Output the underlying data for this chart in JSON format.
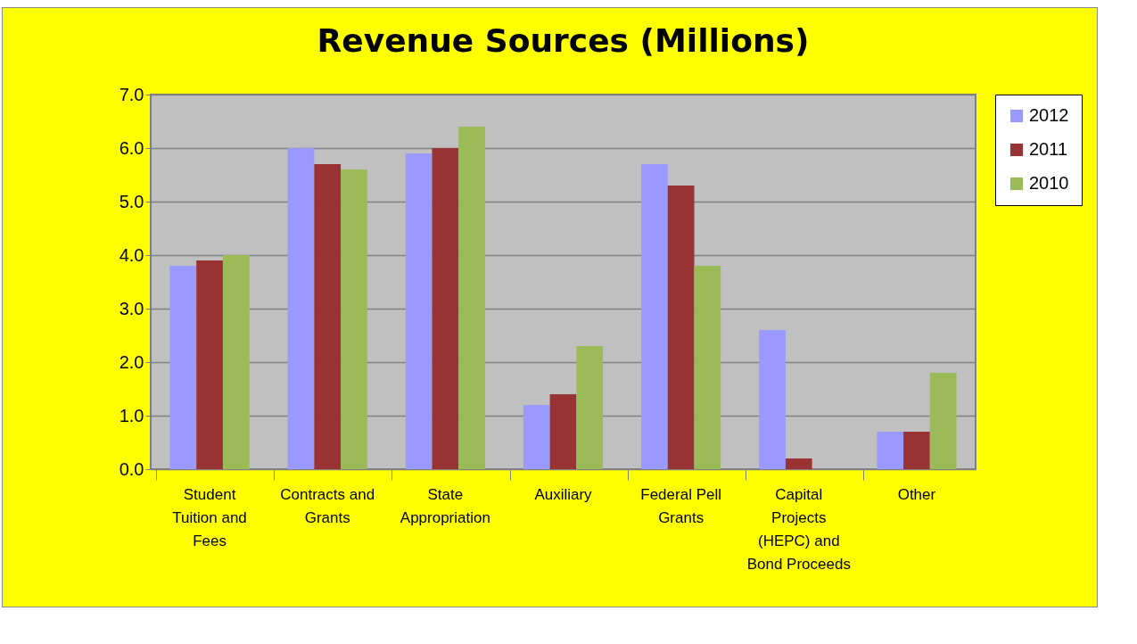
{
  "chart_data": {
    "type": "bar",
    "title": "Revenue Sources (Millions)",
    "categories": [
      "Student Tuition and Fees",
      "Contracts and Grants",
      "State Appropriation",
      "Auxiliary",
      "Federal Pell Grants",
      "Capital Projects (HEPC) and Bond Proceeds",
      "Other"
    ],
    "series": [
      {
        "name": "2012",
        "color": "#9999ff",
        "values": [
          3.8,
          6.0,
          5.9,
          1.2,
          5.7,
          2.6,
          0.7
        ]
      },
      {
        "name": "2011",
        "color": "#993333",
        "values": [
          3.9,
          5.7,
          6.0,
          1.4,
          5.3,
          0.2,
          0.7
        ]
      },
      {
        "name": "2010",
        "color": "#9bbb59",
        "values": [
          4.0,
          5.6,
          6.4,
          2.3,
          3.8,
          0,
          1.8
        ]
      }
    ],
    "ylim": [
      0,
      7
    ],
    "yticks": [
      {
        "value": 0,
        "label": "0.0"
      },
      {
        "value": 1,
        "label": "1.0"
      },
      {
        "value": 2,
        "label": "2.0"
      },
      {
        "value": 3,
        "label": "3.0"
      },
      {
        "value": 4,
        "label": "4.0"
      },
      {
        "value": 5,
        "label": "5.0"
      },
      {
        "value": 6,
        "label": "6.0"
      },
      {
        "value": 7,
        "label": "7.0"
      }
    ],
    "grid": "y",
    "legend": "right"
  }
}
